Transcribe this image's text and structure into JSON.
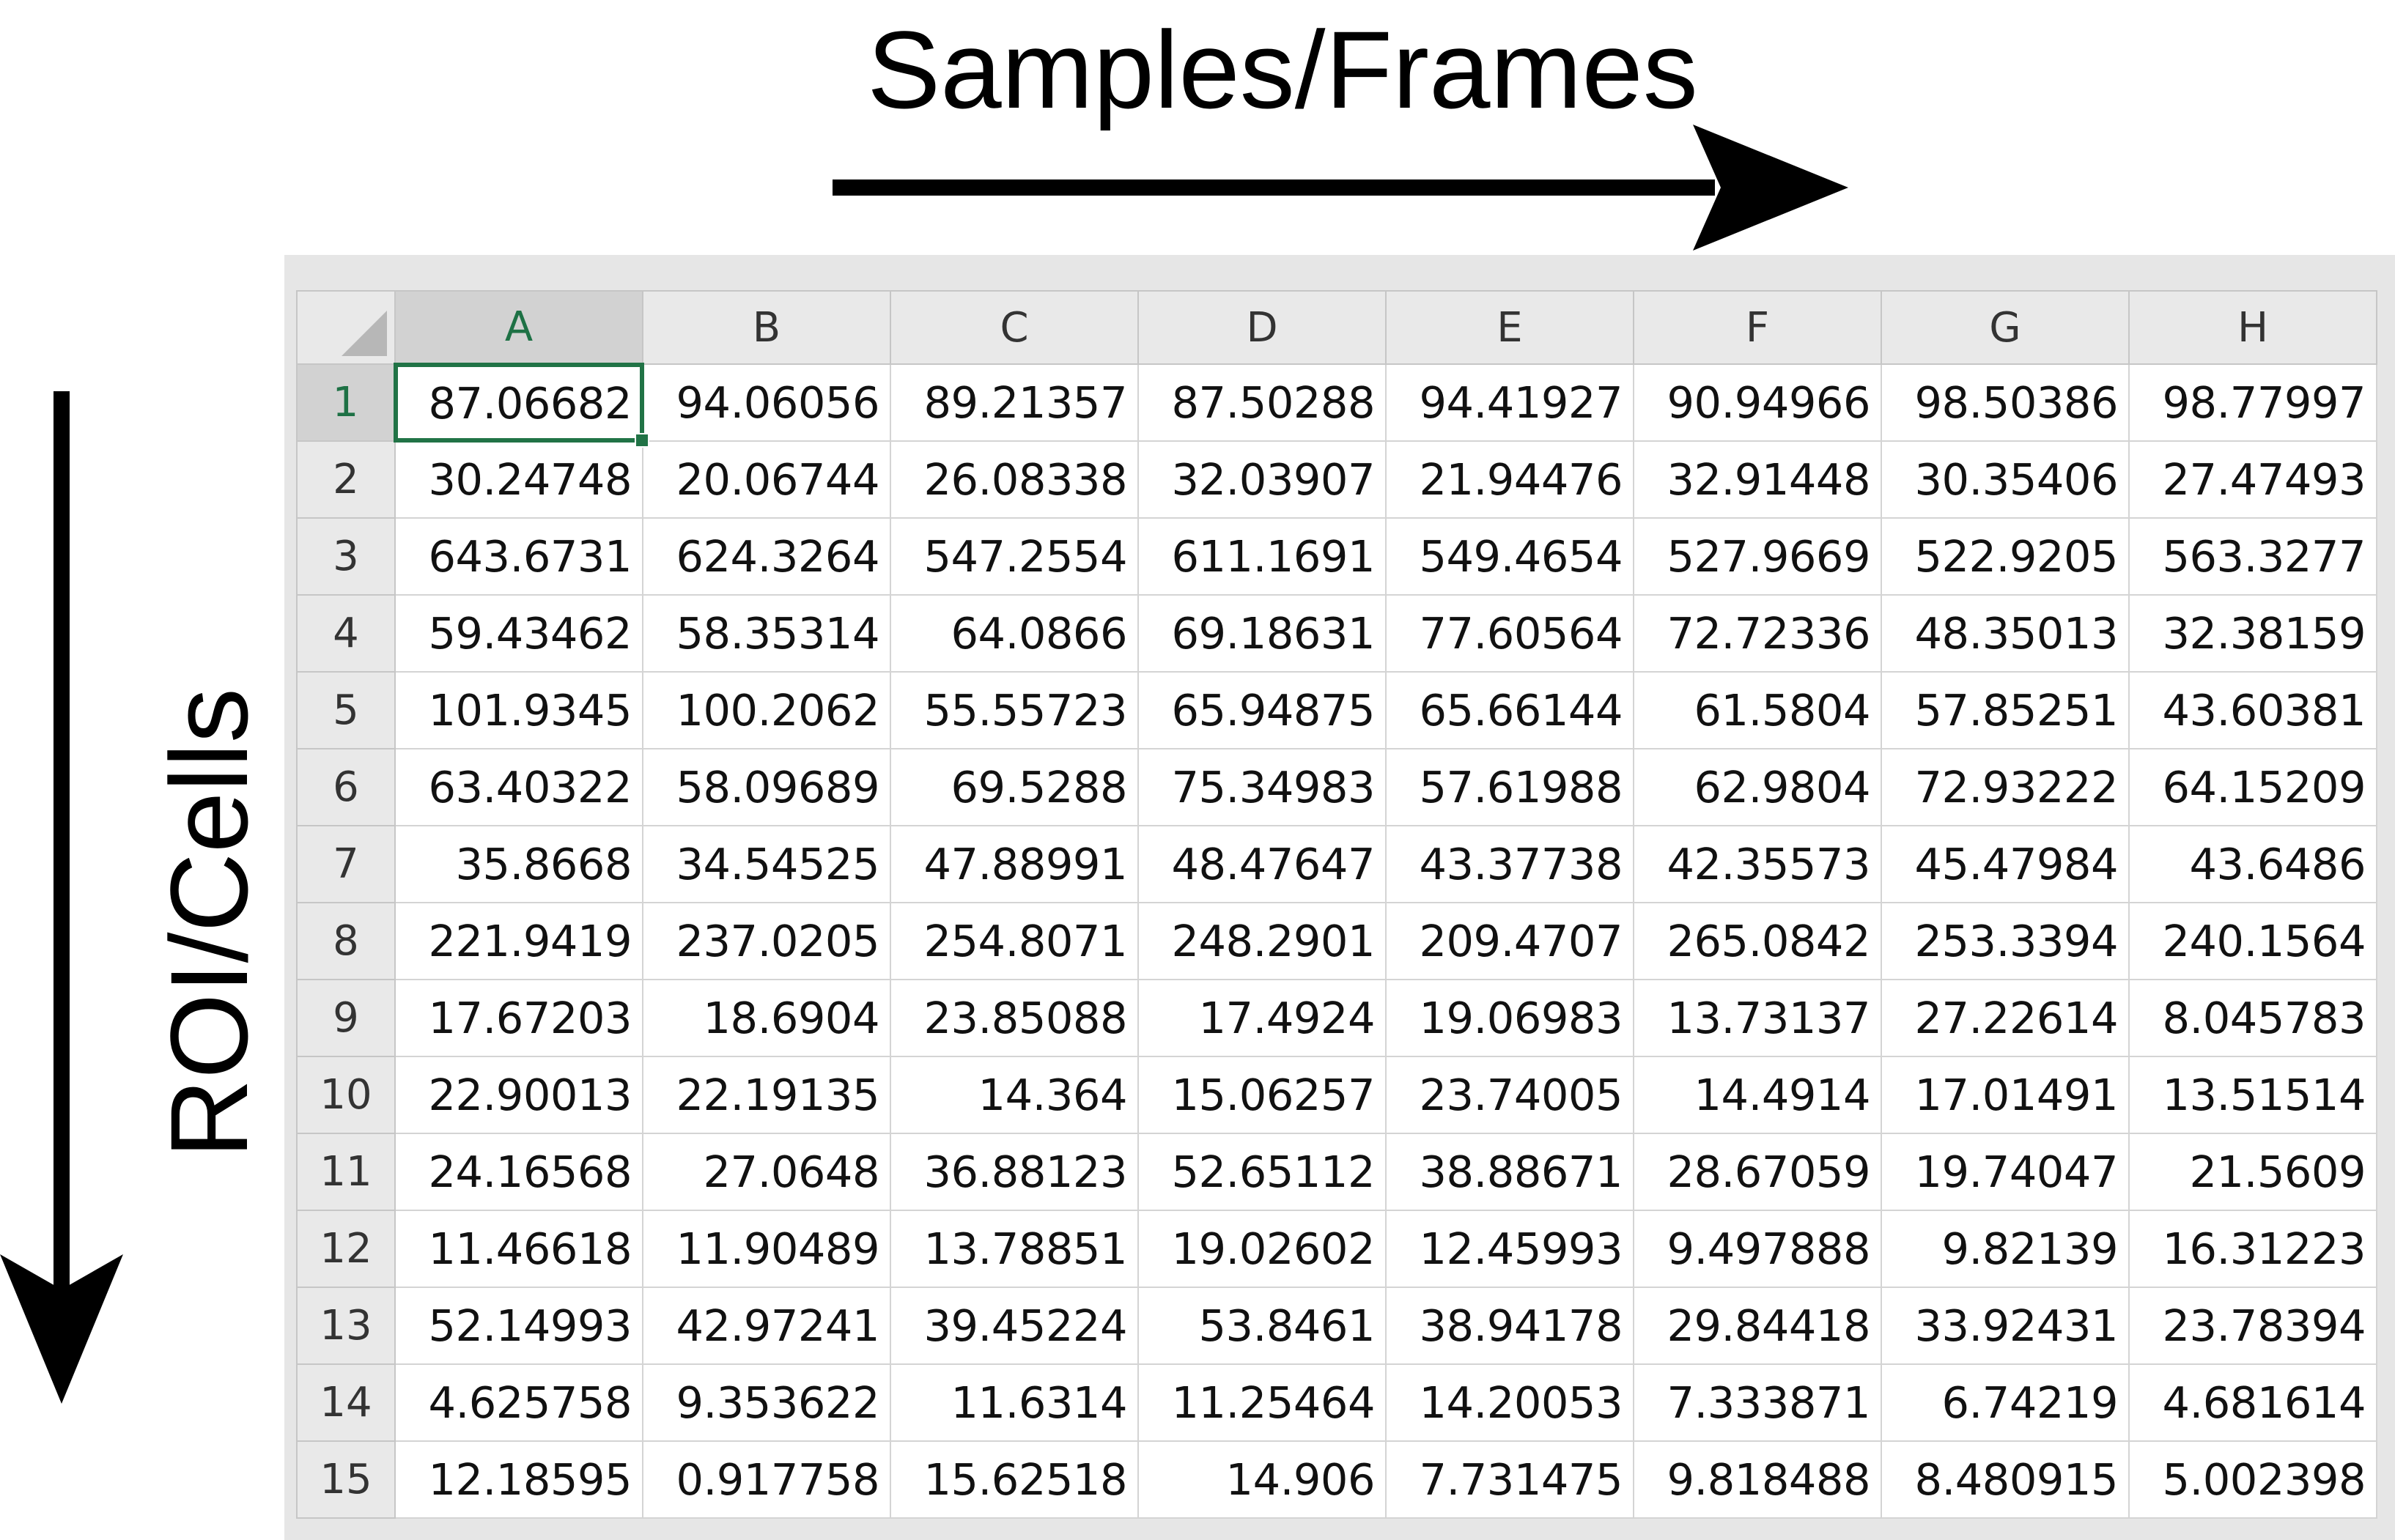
{
  "annotations": {
    "top_label": "Samples/Frames",
    "side_label": "ROI/Cells"
  },
  "colors": {
    "accent_green": "#217346",
    "header_bg": "#e9e9e9",
    "selected_header_bg": "#d2d2d2",
    "gridline": "#d4d4d4"
  },
  "spreadsheet": {
    "columns": [
      "A",
      "B",
      "C",
      "D",
      "E",
      "F",
      "G",
      "H"
    ],
    "selected_column": "A",
    "selected_row": "1",
    "active_cell": "A1",
    "rows": [
      {
        "label": "1",
        "cells": [
          "87.06682",
          "94.06056",
          "89.21357",
          "87.50288",
          "94.41927",
          "90.94966",
          "98.50386",
          "98.77997"
        ]
      },
      {
        "label": "2",
        "cells": [
          "30.24748",
          "20.06744",
          "26.08338",
          "32.03907",
          "21.94476",
          "32.91448",
          "30.35406",
          "27.47493"
        ]
      },
      {
        "label": "3",
        "cells": [
          "643.6731",
          "624.3264",
          "547.2554",
          "611.1691",
          "549.4654",
          "527.9669",
          "522.9205",
          "563.3277"
        ]
      },
      {
        "label": "4",
        "cells": [
          "59.43462",
          "58.35314",
          "64.0866",
          "69.18631",
          "77.60564",
          "72.72336",
          "48.35013",
          "32.38159"
        ]
      },
      {
        "label": "5",
        "cells": [
          "101.9345",
          "100.2062",
          "55.55723",
          "65.94875",
          "65.66144",
          "61.5804",
          "57.85251",
          "43.60381"
        ]
      },
      {
        "label": "6",
        "cells": [
          "63.40322",
          "58.09689",
          "69.5288",
          "75.34983",
          "57.61988",
          "62.9804",
          "72.93222",
          "64.15209"
        ]
      },
      {
        "label": "7",
        "cells": [
          "35.8668",
          "34.54525",
          "47.88991",
          "48.47647",
          "43.37738",
          "42.35573",
          "45.47984",
          "43.6486"
        ]
      },
      {
        "label": "8",
        "cells": [
          "221.9419",
          "237.0205",
          "254.8071",
          "248.2901",
          "209.4707",
          "265.0842",
          "253.3394",
          "240.1564"
        ]
      },
      {
        "label": "9",
        "cells": [
          "17.67203",
          "18.6904",
          "23.85088",
          "17.4924",
          "19.06983",
          "13.73137",
          "27.22614",
          "8.045783"
        ]
      },
      {
        "label": "10",
        "cells": [
          "22.90013",
          "22.19135",
          "14.364",
          "15.06257",
          "23.74005",
          "14.4914",
          "17.01491",
          "13.51514"
        ]
      },
      {
        "label": "11",
        "cells": [
          "24.16568",
          "27.0648",
          "36.88123",
          "52.65112",
          "38.88671",
          "28.67059",
          "19.74047",
          "21.5609"
        ]
      },
      {
        "label": "12",
        "cells": [
          "11.46618",
          "11.90489",
          "13.78851",
          "19.02602",
          "12.45993",
          "9.497888",
          "9.82139",
          "16.31223"
        ]
      },
      {
        "label": "13",
        "cells": [
          "52.14993",
          "42.97241",
          "39.45224",
          "53.8461",
          "38.94178",
          "29.84418",
          "33.92431",
          "23.78394"
        ]
      },
      {
        "label": "14",
        "cells": [
          "4.625758",
          "9.353622",
          "11.6314",
          "11.25464",
          "14.20053",
          "7.333871",
          "6.74219",
          "4.681614"
        ]
      },
      {
        "label": "15",
        "cells": [
          "12.18595",
          "0.917758",
          "15.62518",
          "14.906",
          "7.731475",
          "9.818488",
          "8.480915",
          "5.002398"
        ]
      }
    ]
  }
}
